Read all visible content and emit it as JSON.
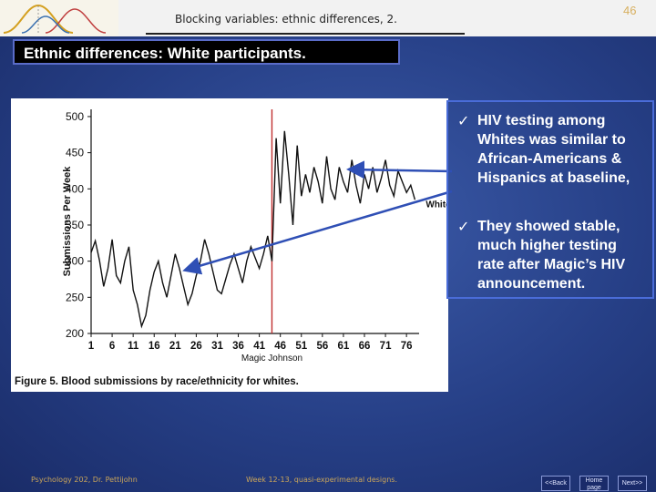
{
  "header": {
    "title": "Blocking variables: ethnic differences, 2.",
    "page_number": "46"
  },
  "section_title": "Ethnic differences:  White participants.",
  "bullets": [
    "HIV testing among Whites  was similar to African-Americans & Hispanics at baseline,",
    "They showed stable, much higher testing rate after Magic’s HIV announcement."
  ],
  "footer": {
    "left": "Psychology 202, Dr. Pettijohn",
    "center": "Week 12-13, quasi-experimental designs."
  },
  "nav": {
    "back": "<<Back",
    "home_line1": "Home",
    "home_line2": "page",
    "next": "Next>>"
  },
  "colors": {
    "accent_border": "#4a6cd8",
    "title_bg": "#000000",
    "arrow": "#2f4fb5",
    "event_line": "#c03030"
  },
  "chart_data": {
    "type": "line",
    "ylabel": "Submissions Per Week",
    "xlabel": "Magic Johnson",
    "series_label": "White",
    "caption": "Figure 5. Blood submissions by race/ethnicity for whites.",
    "x_ticks": [
      1,
      6,
      11,
      16,
      21,
      26,
      31,
      36,
      41,
      46,
      51,
      56,
      61,
      66,
      71,
      76
    ],
    "y_ticks": [
      200,
      250,
      300,
      350,
      400,
      450,
      500
    ],
    "ylim": [
      200,
      510
    ],
    "xlim": [
      1,
      79
    ],
    "event_week": 44,
    "series": [
      {
        "values": [
          312,
          328,
          301,
          265,
          290,
          330,
          280,
          270,
          300,
          320,
          260,
          240,
          210,
          225,
          260,
          285,
          300,
          270,
          250,
          280,
          310,
          290,
          265,
          240,
          255,
          280,
          300,
          330,
          310,
          285,
          260,
          255,
          275,
          295,
          310,
          290,
          270,
          300,
          320,
          305,
          290,
          310,
          335,
          300,
          470,
          380,
          480,
          420,
          350,
          460,
          390,
          420,
          395,
          430,
          410,
          380,
          445,
          400,
          385,
          430,
          410,
          395,
          440,
          405,
          380,
          420,
          400,
          430,
          395,
          415,
          440,
          405,
          390,
          425,
          410,
          395,
          405,
          385
        ]
      }
    ]
  }
}
